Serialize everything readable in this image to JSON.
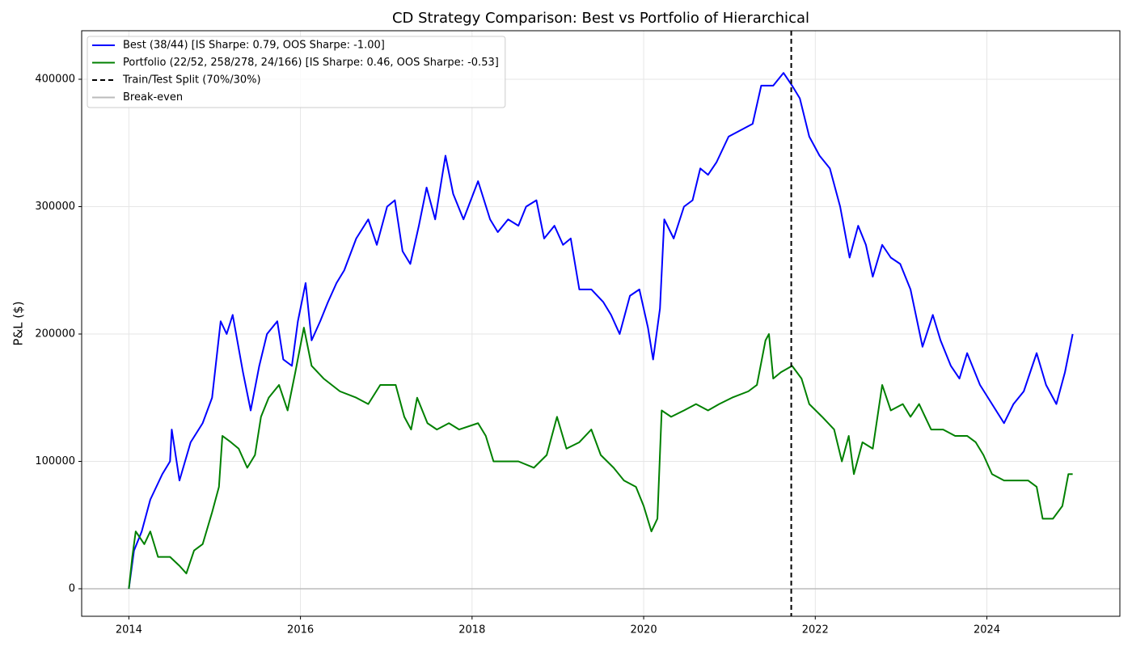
{
  "chart_data": {
    "type": "line",
    "title": "CD Strategy Comparison: Best vs Portfolio of Hierarchical",
    "y_label": "P&L ($)",
    "xlim": [
      2013.45,
      2025.55
    ],
    "xticks": [
      2014,
      2016,
      2018,
      2020,
      2022,
      2024
    ],
    "ylim": [
      -21600,
      438100
    ],
    "yticks": [
      0,
      100000,
      200000,
      300000,
      400000
    ],
    "grid": true,
    "legend": "upper left",
    "series": [
      {
        "name": "Best (38/44) [IS Sharpe: 0.79, OOS Sharpe: -1.00]",
        "color": "#0000ff",
        "x": [
          2014.0,
          2014.06,
          2014.15,
          2014.25,
          2014.39,
          2014.48,
          2014.5,
          2014.59,
          2014.72,
          2014.86,
          2014.97,
          2015.07,
          2015.14,
          2015.21,
          2015.33,
          2015.42,
          2015.52,
          2015.61,
          2015.73,
          2015.8,
          2015.9,
          2015.97,
          2016.06,
          2016.13,
          2016.23,
          2016.32,
          2016.42,
          2016.51,
          2016.65,
          2016.79,
          2016.89,
          2017.01,
          2017.1,
          2017.19,
          2017.28,
          2017.38,
          2017.47,
          2017.57,
          2017.69,
          2017.78,
          2017.9,
          2018.07,
          2018.21,
          2018.3,
          2018.42,
          2018.54,
          2018.63,
          2018.75,
          2018.84,
          2018.96,
          2019.06,
          2019.15,
          2019.25,
          2019.39,
          2019.53,
          2019.62,
          2019.72,
          2019.84,
          2019.95,
          2020.05,
          2020.11,
          2020.19,
          2020.24,
          2020.35,
          2020.47,
          2020.57,
          2020.66,
          2020.75,
          2020.85,
          2020.99,
          2021.13,
          2021.27,
          2021.37,
          2021.51,
          2021.63,
          2021.73,
          2021.82,
          2021.93,
          2022.05,
          2022.17,
          2022.29,
          2022.4,
          2022.5,
          2022.59,
          2022.67,
          2022.78,
          2022.88,
          2022.99,
          2023.11,
          2023.25,
          2023.37,
          2023.46,
          2023.58,
          2023.68,
          2023.77,
          2023.92,
          2024.06,
          2024.2,
          2024.31,
          2024.43,
          2024.58,
          2024.69,
          2024.81,
          2024.91,
          2025.0
        ],
        "values": [
          0,
          30000,
          45000,
          70000,
          90000,
          100000,
          125000,
          85000,
          115000,
          130000,
          150000,
          210000,
          200000,
          215000,
          170000,
          140000,
          175000,
          200000,
          210000,
          180000,
          175000,
          210000,
          240000,
          195000,
          210000,
          225000,
          240000,
          250000,
          275000,
          290000,
          270000,
          300000,
          305000,
          265000,
          255000,
          285000,
          315000,
          290000,
          340000,
          310000,
          290000,
          320000,
          290000,
          280000,
          290000,
          285000,
          300000,
          305000,
          275000,
          285000,
          270000,
          275000,
          235000,
          235000,
          225000,
          215000,
          200000,
          230000,
          235000,
          205000,
          180000,
          220000,
          290000,
          275000,
          300000,
          305000,
          330000,
          325000,
          335000,
          355000,
          360000,
          365000,
          395000,
          395000,
          405000,
          395000,
          385000,
          355000,
          340000,
          330000,
          300000,
          260000,
          285000,
          270000,
          245000,
          270000,
          260000,
          255000,
          235000,
          190000,
          215000,
          195000,
          175000,
          165000,
          185000,
          160000,
          145000,
          130000,
          145000,
          155000,
          185000,
          160000,
          145000,
          170000,
          200000
        ]
      },
      {
        "name": "Portfolio (22/52, 258/278, 24/166) [IS Sharpe: 0.46, OOS Sharpe: -0.53]",
        "color": "#008000",
        "x": [
          2014.0,
          2014.04,
          2014.08,
          2014.18,
          2014.25,
          2014.34,
          2014.48,
          2014.59,
          2014.67,
          2014.76,
          2014.86,
          2014.97,
          2015.05,
          2015.09,
          2015.19,
          2015.28,
          2015.38,
          2015.47,
          2015.54,
          2015.63,
          2015.75,
          2015.85,
          2015.94,
          2016.04,
          2016.13,
          2016.27,
          2016.46,
          2016.65,
          2016.79,
          2016.93,
          2017.11,
          2017.21,
          2017.29,
          2017.36,
          2017.48,
          2017.59,
          2017.73,
          2017.85,
          2018.07,
          2018.16,
          2018.25,
          2018.4,
          2018.54,
          2018.72,
          2018.87,
          2018.99,
          2019.1,
          2019.25,
          2019.39,
          2019.5,
          2019.65,
          2019.77,
          2019.91,
          2020.0,
          2020.09,
          2020.16,
          2020.21,
          2020.32,
          2020.47,
          2020.61,
          2020.75,
          2020.88,
          2021.03,
          2021.22,
          2021.32,
          2021.42,
          2021.46,
          2021.51,
          2021.6,
          2021.73,
          2021.84,
          2021.93,
          2022.08,
          2022.22,
          2022.31,
          2022.39,
          2022.45,
          2022.55,
          2022.67,
          2022.78,
          2022.88,
          2023.02,
          2023.11,
          2023.21,
          2023.35,
          2023.49,
          2023.63,
          2023.77,
          2023.87,
          2023.96,
          2024.06,
          2024.2,
          2024.34,
          2024.48,
          2024.58,
          2024.65,
          2024.77,
          2024.88,
          2024.95,
          2025.0
        ],
        "values": [
          0,
          25000,
          45000,
          35000,
          45000,
          25000,
          25000,
          18000,
          12000,
          30000,
          35000,
          60000,
          80000,
          120000,
          115000,
          110000,
          95000,
          105000,
          135000,
          150000,
          160000,
          140000,
          170000,
          205000,
          175000,
          165000,
          155000,
          150000,
          145000,
          160000,
          160000,
          135000,
          125000,
          150000,
          130000,
          125000,
          130000,
          125000,
          130000,
          120000,
          100000,
          100000,
          100000,
          95000,
          105000,
          135000,
          110000,
          115000,
          125000,
          105000,
          95000,
          85000,
          80000,
          65000,
          45000,
          55000,
          140000,
          135000,
          140000,
          145000,
          140000,
          145000,
          150000,
          155000,
          160000,
          195000,
          200000,
          165000,
          170000,
          175000,
          165000,
          145000,
          135000,
          125000,
          100000,
          120000,
          90000,
          115000,
          110000,
          160000,
          140000,
          145000,
          135000,
          145000,
          125000,
          125000,
          120000,
          120000,
          115000,
          105000,
          90000,
          85000,
          85000,
          85000,
          80000,
          55000,
          55000,
          65000,
          90000,
          90000
        ]
      }
    ],
    "reference_lines": [
      {
        "name": "Train/Test Split (70%/30%)",
        "x": 2021.72,
        "color": "#000000",
        "style": "dashed"
      },
      {
        "name": "Break-even",
        "y": 0,
        "color": "#bbbbbb",
        "style": "solid"
      }
    ]
  }
}
